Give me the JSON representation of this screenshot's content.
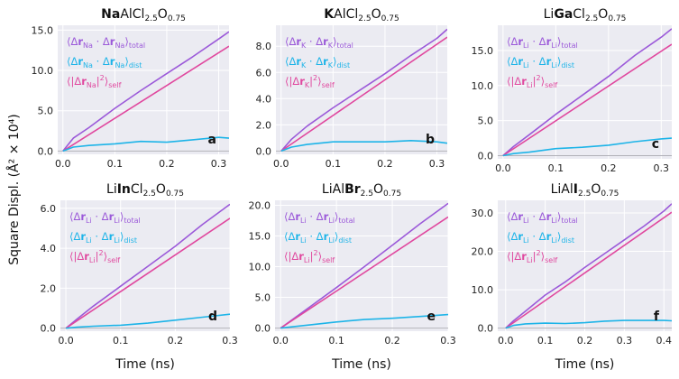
{
  "figure": {
    "ylabel": "Square Displ. (Å² × 10⁴)",
    "xlabel": "Time (ns)",
    "colors": {
      "total": "#9b59d9",
      "self": "#e0479e",
      "dist": "#1db4e8",
      "panel_bg": "#ebebf2",
      "grid": "#ffffff"
    }
  },
  "chart_data": [
    {
      "type": "line",
      "label": "a",
      "title": "NaAlCl2.5O0.75",
      "title_parts": [
        {
          "t": "Na",
          "b": true
        },
        {
          "t": "AlCl"
        },
        {
          "t": "2.5",
          "s": true
        },
        {
          "t": "O"
        },
        {
          "t": "0.75",
          "s": true
        }
      ],
      "xlabel": "",
      "ylabel": "",
      "xlim": [
        -0.01,
        0.32
      ],
      "ylim": [
        -0.4,
        15.6
      ],
      "xticks": [
        0.0,
        0.1,
        0.2,
        0.3
      ],
      "yticks": [
        0.0,
        5.0,
        10.0,
        15.0
      ],
      "xtick_labels": [
        "0.0",
        "0.1",
        "0.2",
        "0.3"
      ],
      "ytick_labels": [
        "0.0",
        "5.0",
        "10.0",
        "15.0"
      ],
      "legend": {
        "species": "Na",
        "total": "⟨Δr_Na · Δr_Na⟩_total",
        "dist": "⟨Δr_Na · Δr_Na⟩_dist",
        "self": "⟨|Δr_Na|²⟩_self"
      },
      "series": [
        {
          "name": "total",
          "x": [
            0,
            0.02,
            0.05,
            0.1,
            0.15,
            0.2,
            0.25,
            0.3,
            0.32
          ],
          "values": [
            0,
            1.6,
            2.9,
            5.3,
            7.5,
            9.6,
            11.7,
            13.9,
            14.8
          ]
        },
        {
          "name": "self",
          "x": [
            0,
            0.32
          ],
          "values": [
            0,
            13.0
          ]
        },
        {
          "name": "dist",
          "x": [
            0,
            0.02,
            0.05,
            0.1,
            0.15,
            0.2,
            0.25,
            0.3,
            0.32
          ],
          "values": [
            0,
            0.5,
            0.7,
            0.9,
            1.2,
            1.1,
            1.4,
            1.7,
            1.6
          ]
        }
      ]
    },
    {
      "type": "line",
      "label": "b",
      "title": "KAlCl2.5O0.75",
      "title_parts": [
        {
          "t": "K",
          "b": true
        },
        {
          "t": "AlCl"
        },
        {
          "t": "2.5",
          "s": true
        },
        {
          "t": "O"
        },
        {
          "t": "0.75",
          "s": true
        }
      ],
      "xlabel": "",
      "ylabel": "",
      "xlim": [
        -0.01,
        0.32
      ],
      "ylim": [
        -0.25,
        9.6
      ],
      "xticks": [
        0.0,
        0.1,
        0.2,
        0.3
      ],
      "yticks": [
        0.0,
        2.0,
        4.0,
        6.0,
        8.0
      ],
      "xtick_labels": [
        "0.0",
        "0.1",
        "0.2",
        "0.3"
      ],
      "ytick_labels": [
        "0.0",
        "2.0",
        "4.0",
        "6.0",
        "8.0"
      ],
      "legend": {
        "species": "K",
        "total": "⟨Δr_K · Δr_K⟩_total",
        "dist": "⟨Δr_K · Δr_K⟩_dist",
        "self": "⟨|Δr_K|²⟩_self"
      },
      "series": [
        {
          "name": "total",
          "x": [
            0,
            0.02,
            0.05,
            0.1,
            0.15,
            0.2,
            0.25,
            0.3,
            0.32
          ],
          "values": [
            0,
            0.9,
            1.9,
            3.3,
            4.6,
            5.9,
            7.3,
            8.6,
            9.3
          ]
        },
        {
          "name": "self",
          "x": [
            0,
            0.32
          ],
          "values": [
            0,
            8.7
          ]
        },
        {
          "name": "dist",
          "x": [
            0,
            0.02,
            0.05,
            0.1,
            0.15,
            0.2,
            0.25,
            0.3,
            0.32
          ],
          "values": [
            0,
            0.3,
            0.5,
            0.7,
            0.7,
            0.7,
            0.8,
            0.7,
            0.6
          ]
        }
      ]
    },
    {
      "type": "line",
      "label": "c",
      "title": "LiGaCl2.5O0.75",
      "title_parts": [
        {
          "t": "Li"
        },
        {
          "t": "Ga",
          "b": true
        },
        {
          "t": "Cl"
        },
        {
          "t": "2.5",
          "s": true
        },
        {
          "t": "O"
        },
        {
          "t": "0.75",
          "s": true
        }
      ],
      "xlabel": "",
      "ylabel": "",
      "xlim": [
        -0.01,
        0.32
      ],
      "ylim": [
        -0.45,
        18.6
      ],
      "xticks": [
        0.0,
        0.1,
        0.2,
        0.3
      ],
      "yticks": [
        0.0,
        5.0,
        10.0,
        15.0
      ],
      "xtick_labels": [
        "0.0",
        "0.1",
        "0.2",
        "0.3"
      ],
      "ytick_labels": [
        "0.0",
        "5.0",
        "10.0",
        "15.0"
      ],
      "legend": {
        "species": "Li",
        "total": "⟨Δr_Li · Δr_Li⟩_total",
        "dist": "⟨Δr_Li · Δr_Li⟩_dist",
        "self": "⟨|Δr_Li|²⟩_self"
      },
      "series": [
        {
          "name": "total",
          "x": [
            0,
            0.02,
            0.05,
            0.1,
            0.15,
            0.2,
            0.25,
            0.3,
            0.32
          ],
          "values": [
            0,
            1.3,
            3.0,
            5.9,
            8.6,
            11.3,
            14.3,
            16.9,
            18.1
          ]
        },
        {
          "name": "self",
          "x": [
            0,
            0.32
          ],
          "values": [
            0,
            15.9
          ]
        },
        {
          "name": "dist",
          "x": [
            0,
            0.02,
            0.05,
            0.1,
            0.15,
            0.2,
            0.25,
            0.3,
            0.32
          ],
          "values": [
            0,
            0.3,
            0.5,
            1.0,
            1.2,
            1.5,
            2.0,
            2.4,
            2.5
          ]
        }
      ]
    },
    {
      "type": "line",
      "label": "d",
      "title": "LiInCl2.5O0.75",
      "title_parts": [
        {
          "t": "Li"
        },
        {
          "t": "In",
          "b": true
        },
        {
          "t": "Cl"
        },
        {
          "t": "2.5",
          "s": true
        },
        {
          "t": "O"
        },
        {
          "t": "0.75",
          "s": true
        }
      ],
      "xlabel": "Time (ns)",
      "ylabel": "",
      "xlim": [
        -0.01,
        0.3
      ],
      "ylim": [
        -0.15,
        6.4
      ],
      "xticks": [
        0.0,
        0.1,
        0.2,
        0.3
      ],
      "yticks": [
        0.0,
        2.0,
        4.0,
        6.0
      ],
      "xtick_labels": [
        "0.0",
        "0.1",
        "0.2",
        "0.3"
      ],
      "ytick_labels": [
        "0.0",
        "2.0",
        "4.0",
        "6.0"
      ],
      "legend": {
        "species": "Li",
        "total": "⟨Δr_Li · Δr_Li⟩_total",
        "dist": "⟨Δr_Li · Δr_Li⟩_dist",
        "self": "⟨|Δr_Li|²⟩_self"
      },
      "series": [
        {
          "name": "total",
          "x": [
            0,
            0.02,
            0.05,
            0.1,
            0.15,
            0.2,
            0.25,
            0.3
          ],
          "values": [
            0,
            0.45,
            1.1,
            2.1,
            3.1,
            4.1,
            5.2,
            6.2
          ]
        },
        {
          "name": "self",
          "x": [
            0,
            0.3
          ],
          "values": [
            0,
            5.5
          ]
        },
        {
          "name": "dist",
          "x": [
            0,
            0.02,
            0.05,
            0.1,
            0.15,
            0.2,
            0.25,
            0.3
          ],
          "values": [
            0,
            0.05,
            0.1,
            0.15,
            0.25,
            0.4,
            0.55,
            0.7
          ]
        }
      ]
    },
    {
      "type": "line",
      "label": "e",
      "title": "LiAlBr2.5O0.75",
      "title_parts": [
        {
          "t": "LiAl"
        },
        {
          "t": "Br",
          "b": true
        },
        {
          "t": "2.5",
          "s": true
        },
        {
          "t": "O"
        },
        {
          "t": "0.75",
          "s": true
        }
      ],
      "xlabel": "Time (ns)",
      "ylabel": "",
      "xlim": [
        -0.01,
        0.3
      ],
      "ylim": [
        -0.5,
        20.8
      ],
      "xticks": [
        0.0,
        0.1,
        0.2,
        0.3
      ],
      "yticks": [
        0.0,
        5.0,
        10.0,
        15.0,
        20.0
      ],
      "xtick_labels": [
        "0.0",
        "0.1",
        "0.2",
        "0.3"
      ],
      "ytick_labels": [
        "0.0",
        "5.0",
        "10.0",
        "15.0",
        "20.0"
      ],
      "legend": {
        "species": "Li",
        "total": "⟨Δr_Li · Δr_Li⟩_total",
        "dist": "⟨Δr_Li · Δr_Li⟩_dist",
        "self": "⟨|Δr_Li|²⟩_self"
      },
      "series": [
        {
          "name": "total",
          "x": [
            0,
            0.02,
            0.05,
            0.1,
            0.15,
            0.2,
            0.25,
            0.3
          ],
          "values": [
            0,
            1.3,
            3.3,
            6.6,
            10.0,
            13.5,
            17.0,
            20.3
          ]
        },
        {
          "name": "self",
          "x": [
            0,
            0.3
          ],
          "values": [
            0,
            18.1
          ]
        },
        {
          "name": "dist",
          "x": [
            0,
            0.02,
            0.05,
            0.1,
            0.15,
            0.2,
            0.25,
            0.3
          ],
          "values": [
            0,
            0.2,
            0.5,
            1.0,
            1.4,
            1.6,
            1.9,
            2.2
          ]
        }
      ]
    },
    {
      "type": "line",
      "label": "f",
      "title": "LiAlI2.5O0.75",
      "title_parts": [
        {
          "t": "LiAl"
        },
        {
          "t": "I",
          "b": true
        },
        {
          "t": "2.5",
          "s": true
        },
        {
          "t": "O"
        },
        {
          "t": "0.75",
          "s": true
        }
      ],
      "xlabel": "Time (ns)",
      "ylabel": "",
      "xlim": [
        -0.02,
        0.42
      ],
      "ylim": [
        -0.8,
        33.3
      ],
      "xticks": [
        0.0,
        0.1,
        0.2,
        0.3,
        0.4
      ],
      "yticks": [
        0.0,
        10.0,
        20.0,
        30.0
      ],
      "xtick_labels": [
        "0.0",
        "0.1",
        "0.2",
        "0.3",
        "0.4"
      ],
      "ytick_labels": [
        "0.0",
        "10.0",
        "20.0",
        "30.0"
      ],
      "legend": {
        "species": "Li",
        "total": "⟨Δr_Li · Δr_Li⟩_total",
        "dist": "⟨Δr_Li · Δr_Li⟩_dist",
        "self": "⟨|Δr_Li|²⟩_self"
      },
      "series": [
        {
          "name": "total",
          "x": [
            0,
            0.02,
            0.05,
            0.1,
            0.15,
            0.2,
            0.25,
            0.3,
            0.35,
            0.4,
            0.42
          ],
          "values": [
            0,
            1.9,
            4.4,
            8.6,
            12.0,
            15.8,
            19.4,
            23.0,
            26.6,
            30.5,
            32.4
          ]
        },
        {
          "name": "self",
          "x": [
            0,
            0.42
          ],
          "values": [
            0,
            30.2
          ]
        },
        {
          "name": "dist",
          "x": [
            0,
            0.02,
            0.05,
            0.1,
            0.15,
            0.2,
            0.25,
            0.3,
            0.35,
            0.4,
            0.42
          ],
          "values": [
            0,
            0.7,
            1.1,
            1.3,
            1.2,
            1.4,
            1.8,
            2.0,
            2.0,
            2.0,
            1.9
          ]
        }
      ]
    }
  ]
}
